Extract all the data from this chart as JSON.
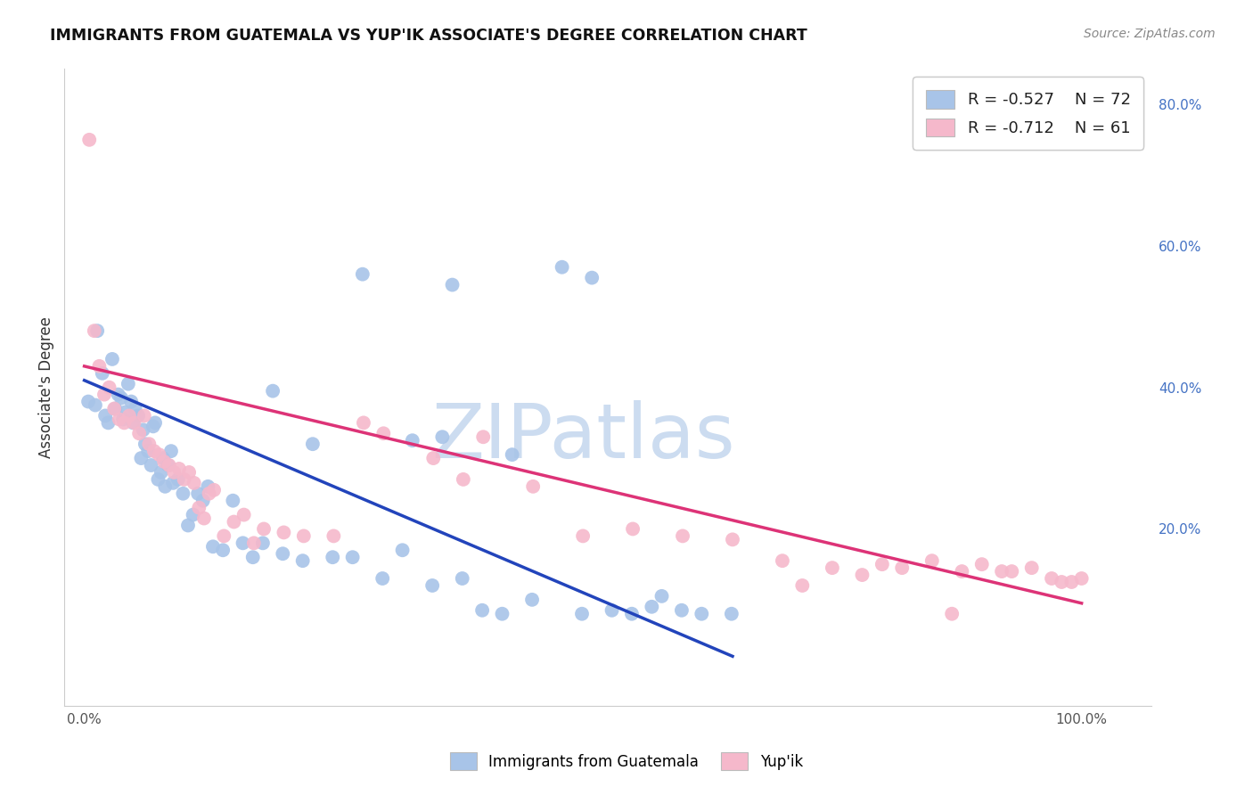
{
  "title": "IMMIGRANTS FROM GUATEMALA VS YUP'IK ASSOCIATE'S DEGREE CORRELATION CHART",
  "source": "Source: ZipAtlas.com",
  "ylabel": "Associate's Degree",
  "blue_r": "-0.527",
  "blue_n": "72",
  "pink_r": "-0.712",
  "pink_n": "61",
  "blue_fill": "#a8c4e8",
  "pink_fill": "#f5b8cb",
  "blue_line": "#2244bb",
  "pink_line": "#dd3377",
  "watermark_color": "#ccdcf0",
  "grid_color": "#ddddee",
  "title_color": "#111111",
  "source_color": "#888888",
  "ylabel_color": "#333333",
  "right_tick_color": "#4472c4",
  "blue_scatter_x": [
    0.4,
    1.1,
    1.3,
    1.8,
    2.1,
    2.4,
    2.8,
    3.1,
    3.4,
    3.7,
    3.9,
    4.1,
    4.4,
    4.7,
    4.9,
    5.1,
    5.4,
    5.7,
    5.9,
    6.1,
    6.4,
    6.7,
    6.9,
    7.1,
    7.4,
    7.7,
    7.9,
    8.1,
    8.4,
    8.7,
    8.9,
    9.4,
    9.9,
    10.4,
    10.9,
    11.4,
    11.9,
    12.4,
    12.9,
    13.9,
    14.9,
    15.9,
    16.9,
    17.9,
    19.9,
    21.9,
    24.9,
    26.9,
    29.9,
    31.9,
    34.9,
    37.9,
    39.9,
    41.9,
    44.9,
    49.9,
    52.9,
    54.9,
    56.9,
    59.9,
    61.9,
    64.9,
    47.9,
    50.9,
    36.9,
    27.9,
    18.9,
    22.9,
    32.9,
    35.9,
    42.9,
    57.9
  ],
  "blue_scatter_y": [
    38,
    37.5,
    48,
    42,
    36,
    35,
    44,
    37,
    39,
    38.5,
    35.5,
    36.5,
    40.5,
    38,
    35,
    37,
    36,
    30,
    34,
    32,
    31,
    29,
    34.5,
    35,
    27,
    28,
    30,
    26,
    29,
    31,
    26.5,
    27,
    25,
    20.5,
    22,
    25,
    24,
    26,
    17.5,
    17,
    24,
    18,
    16,
    18,
    16.5,
    15.5,
    16,
    16,
    13,
    17,
    12,
    13,
    8.5,
    8,
    10,
    8,
    8.5,
    8,
    9,
    8.5,
    8,
    8,
    57,
    55.5,
    54.5,
    56,
    39.5,
    32,
    32.5,
    33,
    30.5,
    10.5
  ],
  "pink_scatter_x": [
    0.5,
    1.0,
    1.5,
    2.0,
    2.5,
    3.0,
    3.5,
    4.0,
    4.5,
    5.0,
    5.5,
    6.0,
    6.5,
    7.0,
    7.5,
    8.0,
    8.5,
    9.0,
    9.5,
    10.0,
    10.5,
    11.0,
    11.5,
    12.0,
    12.5,
    13.0,
    14.0,
    15.0,
    16.0,
    17.0,
    18.0,
    20.0,
    22.0,
    25.0,
    28.0,
    30.0,
    35.0,
    38.0,
    40.0,
    45.0,
    50.0,
    55.0,
    60.0,
    65.0,
    70.0,
    75.0,
    80.0,
    82.0,
    85.0,
    88.0,
    90.0,
    92.0,
    95.0,
    97.0,
    98.0,
    99.0,
    100.0,
    87.0,
    93.0,
    78.0,
    72.0
  ],
  "pink_scatter_y": [
    75,
    48,
    43,
    39,
    40,
    37,
    35.5,
    35,
    36,
    35,
    33.5,
    36,
    32,
    31,
    30.5,
    29.5,
    29,
    28,
    28.5,
    27,
    28,
    26.5,
    23,
    21.5,
    25,
    25.5,
    19,
    21,
    22,
    18,
    20,
    19.5,
    19,
    19,
    35,
    33.5,
    30,
    27,
    33,
    26,
    19,
    20,
    19,
    18.5,
    15.5,
    14.5,
    15,
    14.5,
    15.5,
    14,
    15,
    14,
    14.5,
    13,
    12.5,
    12.5,
    13,
    8,
    14,
    13.5,
    12
  ],
  "blue_trend": [
    0,
    65,
    41,
    2
  ],
  "pink_trend": [
    0,
    100,
    43,
    9.5
  ],
  "xlim": [
    -2,
    107
  ],
  "ylim": [
    -5,
    85
  ],
  "right_yticks": [
    20,
    40,
    60,
    80
  ],
  "right_yticklabels": [
    "20.0%",
    "40.0%",
    "60.0%",
    "80.0%"
  ]
}
